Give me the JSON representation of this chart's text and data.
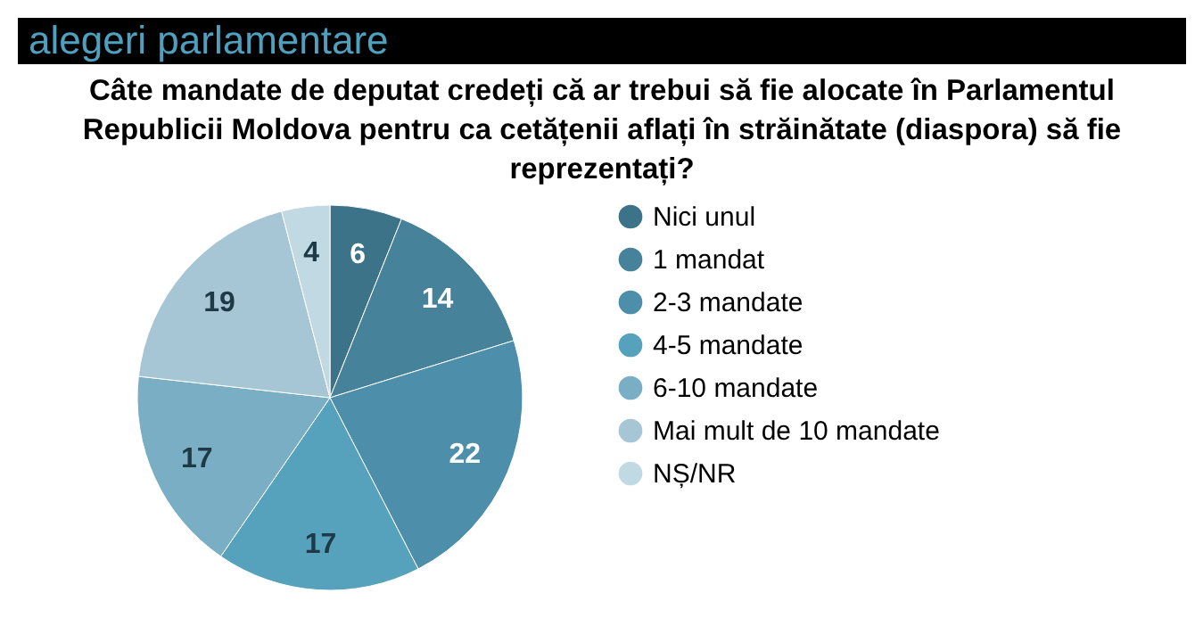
{
  "chart_data": {
    "type": "pie",
    "title": "alegeri parlamentare",
    "subtitle": "Câte mandate de deputat credeți că ar trebui să fie alocate în Parlamentul Republicii Moldova pentru ca cetățenii aflați în străinătate (diaspora) să fie reprezentați?",
    "categories": [
      "Nici unul",
      "1 mandat",
      "2-3 mandate",
      "4-5 mandate",
      "6-10 mandate",
      "Mai mult de 10 mandate",
      "NȘ/NR"
    ],
    "values": [
      6,
      14,
      22,
      17,
      17,
      19,
      4
    ],
    "colors": [
      "#3d7389",
      "#468299",
      "#4d8fab",
      "#56a2bd",
      "#79aec4",
      "#a7c6d5",
      "#c1d9e3"
    ],
    "data_labels": true,
    "legend": "right"
  }
}
